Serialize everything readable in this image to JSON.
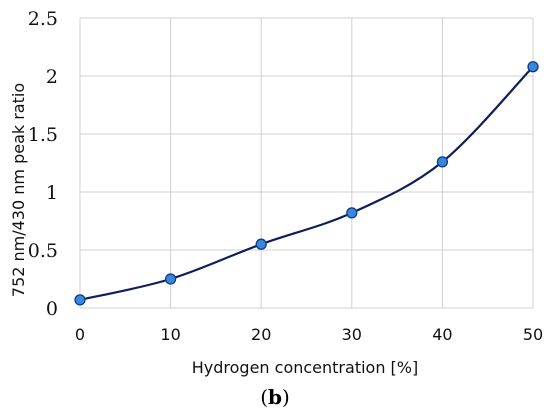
{
  "chart_data": {
    "type": "line",
    "title": "",
    "xlabel": "Hydrogen concentration [%]",
    "ylabel": "752 nm/430 nm peak ratio",
    "caption": {
      "open": "(",
      "letter": "b",
      "close": ")"
    },
    "xlim": [
      0,
      50
    ],
    "ylim": [
      0,
      2.5
    ],
    "x_ticks": [
      {
        "value": 0,
        "label": "0"
      },
      {
        "value": 10,
        "label": "10"
      },
      {
        "value": 20,
        "label": "20"
      },
      {
        "value": 30,
        "label": "30"
      },
      {
        "value": 40,
        "label": "40"
      },
      {
        "value": 50,
        "label": "50"
      }
    ],
    "y_ticks": [
      {
        "value": 0,
        "label": "0"
      },
      {
        "value": 0.5,
        "label": "0.5"
      },
      {
        "value": 1,
        "label": "1"
      },
      {
        "value": 1.5,
        "label": "1.5"
      },
      {
        "value": 2,
        "label": "2"
      },
      {
        "value": 2.5,
        "label": "2.5"
      }
    ],
    "grid": true,
    "smooth": true,
    "legend": "none",
    "colors": {
      "line": "#0d1f5c",
      "marker_fill": "#3b86d8",
      "marker_stroke": "#0d3c8c",
      "grid": "#d0d0d0"
    },
    "series": [
      {
        "x": [
          0,
          10,
          20,
          30,
          40,
          50
        ],
        "values": [
          0.07,
          0.25,
          0.55,
          0.82,
          1.26,
          2.08
        ]
      }
    ]
  }
}
